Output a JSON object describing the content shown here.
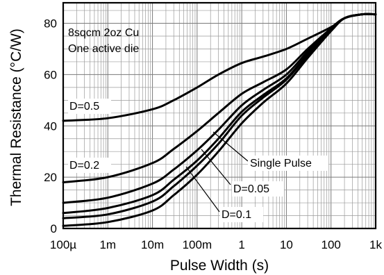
{
  "chart_data": {
    "type": "line",
    "xlabel": "Pulse Width (s)",
    "ylabel": "Thermal Resistance (°C/W)",
    "x_scale": "log",
    "xlim": [
      0.0001,
      1000
    ],
    "ylim": [
      0,
      88
    ],
    "grid": true,
    "x_ticks": [
      {
        "value": 0.0001,
        "label": "100µ"
      },
      {
        "value": 0.001,
        "label": "1m"
      },
      {
        "value": 0.01,
        "label": "10m"
      },
      {
        "value": 0.1,
        "label": "100m"
      },
      {
        "value": 1,
        "label": "1"
      },
      {
        "value": 10,
        "label": "10"
      },
      {
        "value": 100,
        "label": "100"
      },
      {
        "value": 1000,
        "label": "1k"
      }
    ],
    "y_ticks": [
      0,
      20,
      40,
      60,
      80
    ],
    "annotations": {
      "line1": "8sqcm 2oz Cu",
      "line2": "One active die"
    },
    "series": [
      {
        "name": "D=0.5",
        "x": [
          0.0001,
          0.001,
          0.01,
          0.03,
          0.1,
          0.3,
          1,
          3,
          10,
          30,
          100,
          200,
          500,
          1000
        ],
        "y": [
          42,
          43,
          46.5,
          50,
          55,
          60,
          64.5,
          67,
          70,
          74,
          78.5,
          82,
          83.5,
          83.5
        ]
      },
      {
        "name": "D=0.2",
        "x": [
          0.0001,
          0.001,
          0.01,
          0.03,
          0.1,
          0.3,
          1,
          3,
          10,
          30,
          100,
          200,
          500,
          1000
        ],
        "y": [
          18,
          20,
          25.5,
          31,
          38,
          45,
          52.5,
          57,
          62,
          70,
          78,
          82,
          83.5,
          83.5
        ]
      },
      {
        "name": "",
        "x": [
          0.0001,
          0.001,
          0.01,
          0.03,
          0.1,
          0.3,
          1,
          3,
          10,
          30,
          100,
          200,
          500,
          1000
        ],
        "y": [
          10,
          12,
          17.5,
          23,
          30.5,
          38.5,
          48,
          54,
          60,
          69,
          78,
          82,
          83.5,
          83.5
        ]
      },
      {
        "name": "D=0.1",
        "x": [
          0.0001,
          0.001,
          0.01,
          0.03,
          0.1,
          0.3,
          1,
          3,
          10,
          30,
          100,
          200,
          500,
          1000
        ],
        "y": [
          6,
          8,
          13,
          19,
          26.5,
          35,
          45.5,
          52,
          58.5,
          68,
          77.5,
          82,
          83.5,
          83.5
        ]
      },
      {
        "name": "D=0.05",
        "x": [
          0.0001,
          0.001,
          0.01,
          0.03,
          0.1,
          0.3,
          1,
          3,
          10,
          30,
          100,
          200,
          500,
          1000
        ],
        "y": [
          4,
          5.5,
          10.5,
          16.5,
          24.5,
          33,
          44,
          51,
          58,
          67.5,
          77,
          82,
          83.5,
          83.5
        ]
      },
      {
        "name": "Single Pulse",
        "x": [
          0.0001,
          0.001,
          0.01,
          0.03,
          0.1,
          0.3,
          1,
          3,
          10,
          30,
          100,
          200,
          500,
          1000
        ],
        "y": [
          1,
          2.5,
          7,
          13,
          21,
          30,
          41,
          49,
          56.5,
          66.5,
          77,
          82,
          83.5,
          83.5
        ]
      }
    ],
    "labels": {
      "d05": "D=0.5",
      "d02": "D=0.2",
      "single": "Single Pulse",
      "d005": "D=0.05",
      "d01": "D=0.1"
    }
  }
}
